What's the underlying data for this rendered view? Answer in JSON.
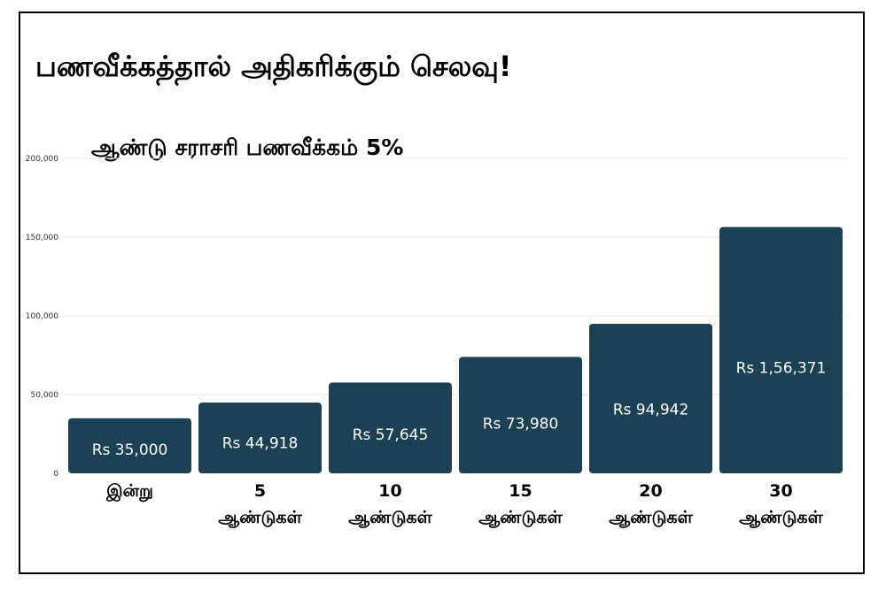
{
  "chart_data": {
    "type": "bar",
    "title": "பணவீக்கத்தால் அதிகரிக்கும் செலவு!",
    "subtitle": "ஆண்டு சராசரி பணவீக்கம் 5%",
    "categories": [
      [
        "இன்று"
      ],
      [
        "5",
        "ஆண்டுகள்"
      ],
      [
        "10",
        "ஆண்டுகள்"
      ],
      [
        "15",
        "ஆண்டுகள்"
      ],
      [
        "20",
        "ஆண்டுகள்"
      ],
      [
        "30",
        "ஆண்டுகள்"
      ]
    ],
    "values": [
      35000,
      44918,
      57645,
      73980,
      94942,
      156371
    ],
    "data_labels": [
      "Rs 35,000",
      "Rs 44,918",
      "Rs 57,645",
      "Rs  73,980",
      "Rs 94,942",
      "Rs  1,56,371"
    ],
    "ylim": [
      0,
      200000
    ],
    "yticks": [
      0,
      50000,
      100000,
      150000,
      200000
    ],
    "ytick_labels": [
      "0",
      "50,000",
      "100,000",
      "150,000",
      "200,000"
    ],
    "grid": true,
    "bar_color": "#1c4154",
    "grid_color": "#e6e6e6"
  }
}
